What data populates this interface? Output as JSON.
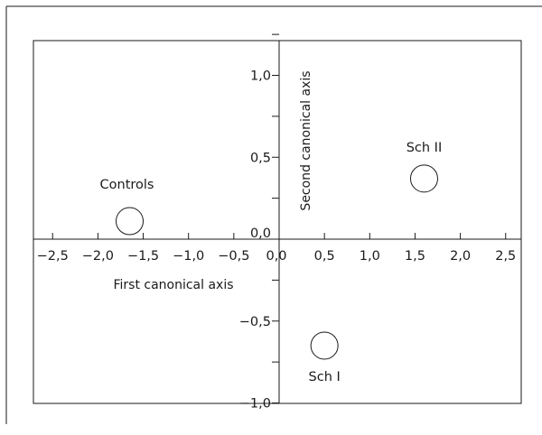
{
  "chart_data": {
    "type": "scatter",
    "title": "",
    "xlabel": "First canonical axis",
    "ylabel": "Second canonical axis",
    "xlim": [
      -2.75,
      2.8
    ],
    "ylim": [
      -1.2,
      1.3
    ],
    "x_ticks": [
      -2.5,
      -2.0,
      -1.5,
      -1.0,
      -0.5,
      0.0,
      0.5,
      1.0,
      1.5,
      2.0,
      2.5
    ],
    "x_tick_labels": [
      "−2,5",
      "−2,0",
      "−1,5",
      "−1,0",
      "−0,5",
      "0,0",
      "0,5",
      "1,0",
      "1,5",
      "2,0",
      "2,5"
    ],
    "y_ticks": [
      -1.0,
      -0.75,
      -0.5,
      -0.25,
      0.0,
      0.25,
      0.5,
      0.75,
      1.0,
      1.25
    ],
    "y_tick_labels": [
      "−1,0",
      "",
      "−0,5",
      "",
      "0,0",
      "",
      "0,5",
      "",
      "1,0",
      ""
    ],
    "grid": false,
    "legend": "none",
    "points": [
      {
        "label": "Controls",
        "x": -1.65,
        "y": 0.11
      },
      {
        "label": "Sch I",
        "x": 0.5,
        "y": -0.65
      },
      {
        "label": "Sch II",
        "x": 1.6,
        "y": 0.37
      }
    ]
  }
}
